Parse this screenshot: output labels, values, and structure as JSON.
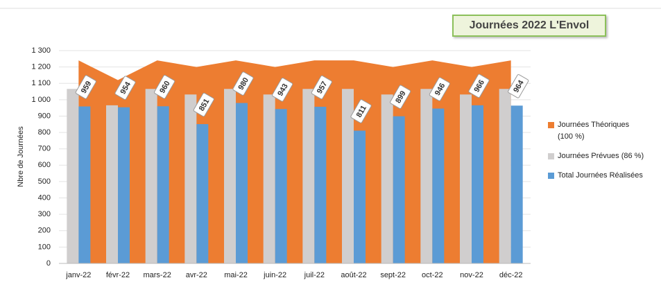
{
  "chart_data": {
    "type": "bar-area",
    "title": "Journées 2022 L'Envol",
    "y_label": "Nbre de Journées",
    "categories": [
      "janv-22",
      "févr-22",
      "mars-22",
      "avr-22",
      "mai-22",
      "juin-22",
      "juil-22",
      "août-22",
      "sept-22",
      "oct-22",
      "nov-22",
      "déc-22"
    ],
    "series": [
      {
        "name": "Journées Théoriques (100 %)",
        "color": "#ed7d31",
        "kind": "area",
        "values": [
          1240,
          1120,
          1240,
          1200,
          1240,
          1200,
          1240,
          1240,
          1200,
          1240,
          1200,
          1240
        ]
      },
      {
        "name": "Journées Prévues (86 %)",
        "color": "#d0cece",
        "kind": "bar",
        "values": [
          1066,
          966,
          1066,
          1032,
          1066,
          1032,
          1066,
          1066,
          1032,
          1066,
          1032,
          1066
        ]
      },
      {
        "name": "Total Journées Réalisées",
        "color": "#5b9bd5",
        "kind": "bar",
        "labels": true,
        "values": [
          959,
          954,
          960,
          851,
          980,
          943,
          957,
          811,
          899,
          946,
          966,
          964
        ]
      }
    ],
    "ylim": [
      0,
      1300
    ],
    "yticks": [
      0,
      100,
      200,
      300,
      400,
      500,
      600,
      700,
      800,
      900,
      {
        "value": 1000,
        "label": "1 000"
      },
      {
        "value": 1100,
        "label": "1 100"
      },
      {
        "value": 1200,
        "label": "1 200"
      },
      {
        "value": 1300,
        "label": "1 300"
      }
    ],
    "grid": true
  }
}
